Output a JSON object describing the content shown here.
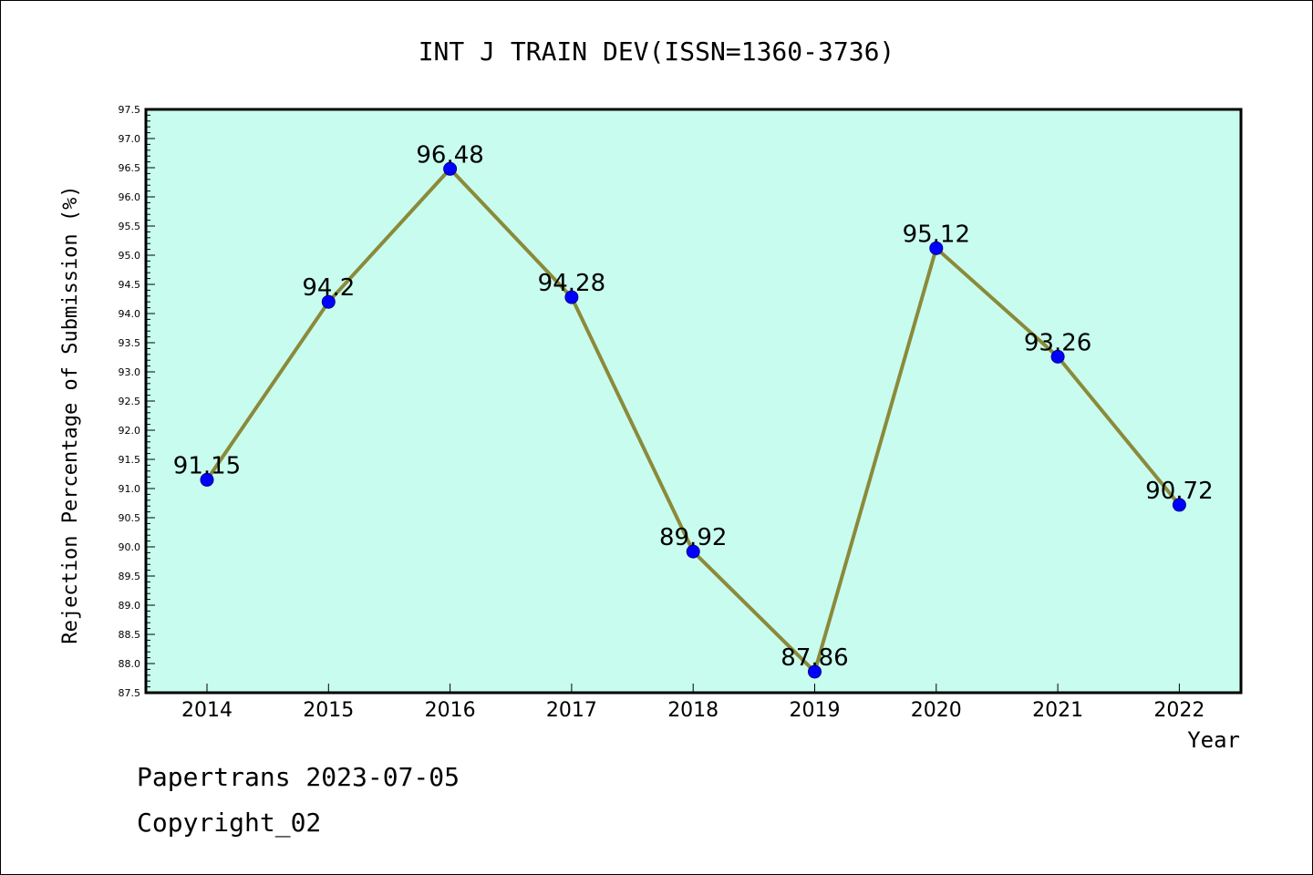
{
  "chart_data": {
    "type": "line",
    "title": "INT J TRAIN DEV(ISSN=1360-3736)",
    "xlabel": "Year",
    "ylabel": "Rejection Percentage of Submission (%)",
    "categories": [
      "2014",
      "2015",
      "2016",
      "2017",
      "2018",
      "2019",
      "2020",
      "2021",
      "2022"
    ],
    "values": [
      91.15,
      94.2,
      96.48,
      94.28,
      89.92,
      87.86,
      95.12,
      93.26,
      90.72
    ],
    "data_labels": [
      "91.15",
      "94.2",
      "96.48",
      "94.28",
      "89.92",
      "87.86",
      "95.12",
      "93.26",
      "90.72"
    ],
    "ylim": [
      87.5,
      97.5
    ],
    "yticks": [
      "87.5",
      "88.0",
      "88.5",
      "89.0",
      "89.5",
      "90.0",
      "90.5",
      "91.0",
      "91.5",
      "92.0",
      "92.5",
      "93.0",
      "93.5",
      "94.0",
      "94.5",
      "95.0",
      "95.5",
      "96.0",
      "96.5",
      "97.0",
      "97.5"
    ],
    "grid": false,
    "colors": {
      "plot_background": "#c8fcee",
      "line": "#8b8a3a",
      "marker": "#0000ff"
    }
  },
  "footer": {
    "line1": "Papertrans 2023-07-05",
    "line2": "Copyright_02"
  }
}
